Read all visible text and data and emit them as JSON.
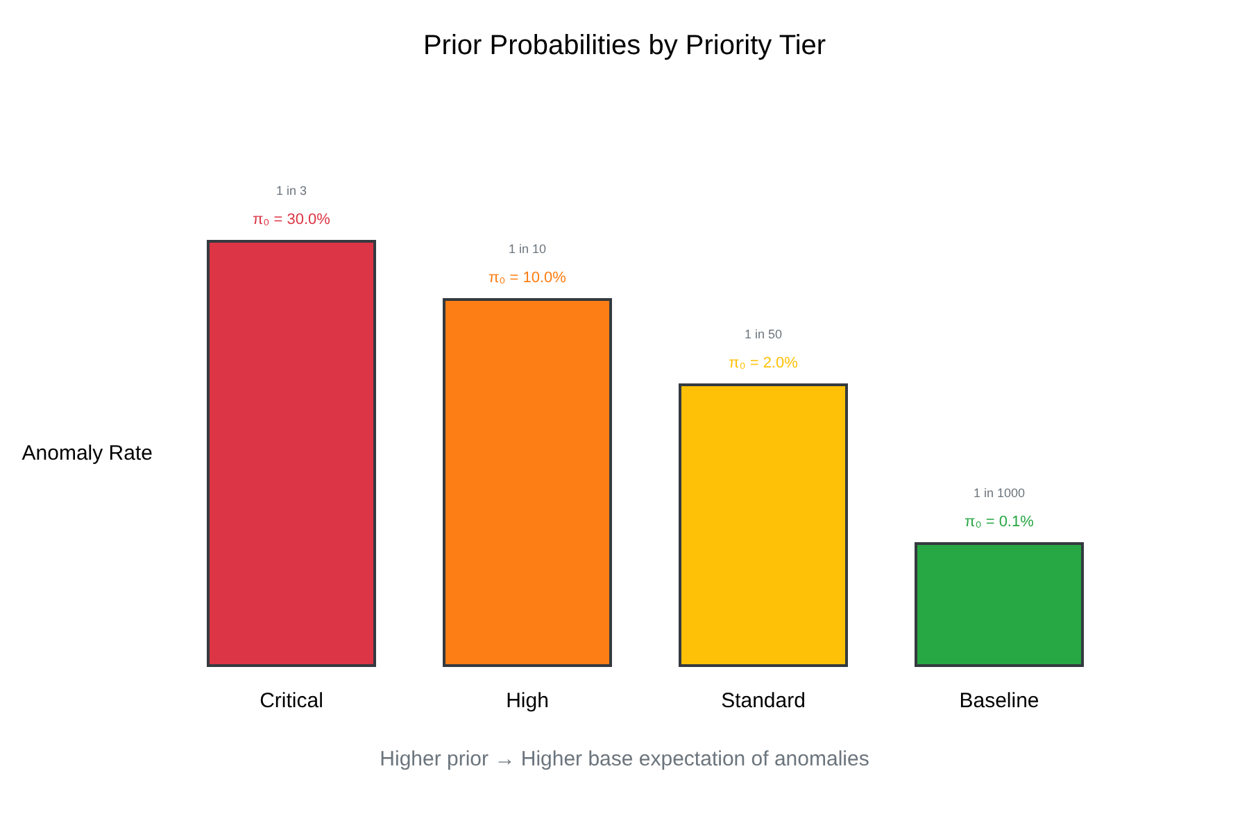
{
  "chart_data": {
    "type": "bar",
    "title": "Prior Probabilities by Priority Tier",
    "ylabel": "Anomaly Rate",
    "categories": [
      "Critical",
      "High",
      "Standard",
      "Baseline"
    ],
    "values": [
      30,
      10,
      2,
      0.1
    ],
    "colors": [
      "#dc3545",
      "#fd7e14",
      "#ffc107",
      "#28a745"
    ],
    "value_labels": [
      "π₀ = 30.0%",
      "π₀ = 10.0%",
      "π₀ = 2.0%",
      "π₀ = 0.1%"
    ],
    "log": true,
    "ylim": [
      0.01,
      30
    ],
    "tick_labels": "x",
    "grid": false,
    "annotations": [
      "1 in 3",
      "1 in 10",
      "1 in 50",
      "1 in 1000",
      "Higher prior → Higher base expectation of anomalies"
    ]
  }
}
